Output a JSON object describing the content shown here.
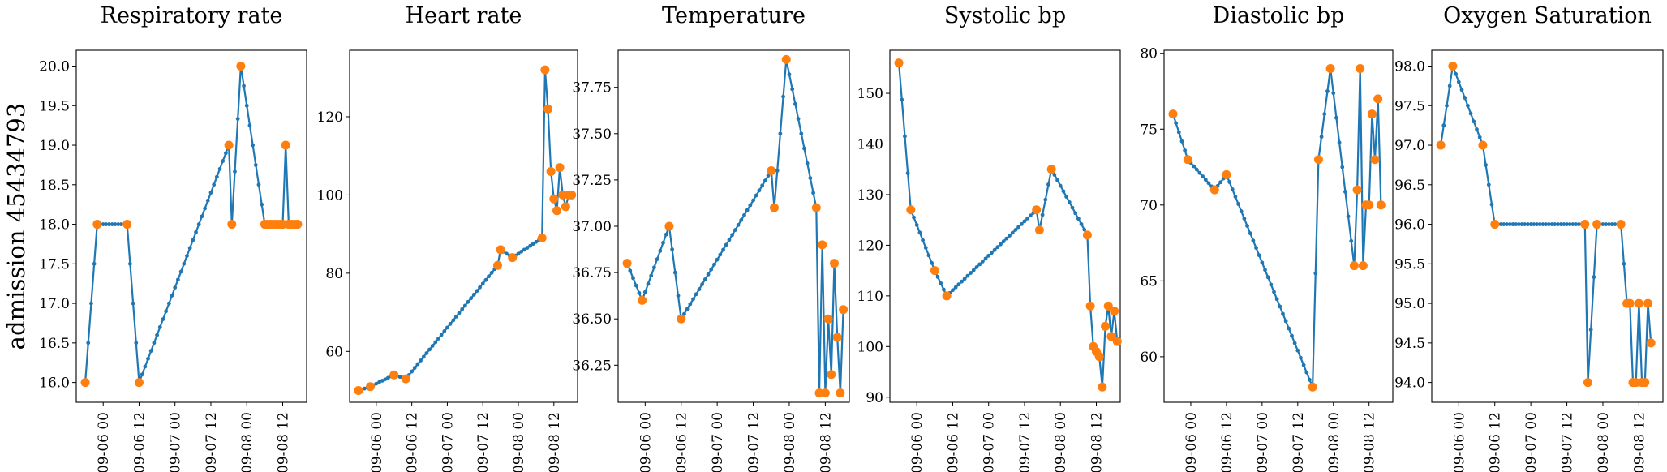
{
  "row_label": "admission 45434793",
  "colors": {
    "line": "#1f77b4",
    "marker": "#ff7f0e"
  },
  "chart_data": [
    {
      "type": "line",
      "title": "Respiratory rate",
      "xlim": [
        "09-05 15:00",
        "09-08 20:00"
      ],
      "xticks": [
        "09-06 00",
        "09-06 12",
        "09-07 00",
        "09-07 12",
        "09-08 00",
        "09-08 12"
      ],
      "ylim": [
        15.75,
        20.2
      ],
      "yticks": [
        "16.0",
        "16.5",
        "17.0",
        "17.5",
        "18.0",
        "18.5",
        "19.0",
        "19.5",
        "20.0"
      ],
      "series": [
        {
          "points": [
            [
              "09-05 18:00",
              16
            ],
            [
              "09-05 22:00",
              18
            ],
            [
              "09-06 08:00",
              18
            ],
            [
              "09-06 12:00",
              16
            ],
            [
              "09-07 18:00",
              19
            ],
            [
              "09-07 19:00",
              18
            ],
            [
              "09-07 22:00",
              20
            ],
            [
              "09-08 06:00",
              18
            ],
            [
              "09-08 07:00",
              18
            ],
            [
              "09-08 08:00",
              18
            ],
            [
              "09-08 09:00",
              18
            ],
            [
              "09-08 10:00",
              18
            ],
            [
              "09-08 11:00",
              18
            ],
            [
              "09-08 12:00",
              18
            ],
            [
              "09-08 13:00",
              19
            ],
            [
              "09-08 14:00",
              18
            ],
            [
              "09-08 15:00",
              18
            ],
            [
              "09-08 16:00",
              18
            ],
            [
              "09-08 17:00",
              18
            ]
          ]
        }
      ]
    },
    {
      "type": "line",
      "title": "Heart rate",
      "xlim": [
        "09-05 15:00",
        "09-08 20:00"
      ],
      "xticks": [
        "09-06 00",
        "09-06 12",
        "09-07 00",
        "09-07 12",
        "09-08 00",
        "09-08 12"
      ],
      "ylim": [
        47,
        137
      ],
      "yticks": [
        "60",
        "80",
        "100",
        "120"
      ],
      "series": [
        {
          "points": [
            [
              "09-05 18:00",
              50
            ],
            [
              "09-05 22:00",
              51
            ],
            [
              "09-06 06:00",
              54
            ],
            [
              "09-06 10:00",
              53
            ],
            [
              "09-07 17:00",
              82
            ],
            [
              "09-07 18:00",
              86
            ],
            [
              "09-07 22:00",
              84
            ],
            [
              "09-08 08:00",
              89
            ],
            [
              "09-08 09:00",
              132
            ],
            [
              "09-08 10:00",
              122
            ],
            [
              "09-08 11:00",
              106
            ],
            [
              "09-08 12:00",
              99
            ],
            [
              "09-08 13:00",
              96
            ],
            [
              "09-08 14:00",
              107
            ],
            [
              "09-08 15:00",
              100
            ],
            [
              "09-08 16:00",
              97
            ],
            [
              "09-08 17:00",
              100
            ],
            [
              "09-08 18:00",
              100
            ]
          ]
        }
      ]
    },
    {
      "type": "line",
      "title": "Temperature",
      "xlim": [
        "09-05 15:00",
        "09-08 20:00"
      ],
      "xticks": [
        "09-06 00",
        "09-06 12",
        "09-07 00",
        "09-07 12",
        "09-08 00",
        "09-08 12"
      ],
      "ylim": [
        36.05,
        37.95
      ],
      "yticks": [
        "36.25",
        "36.50",
        "36.75",
        "37.00",
        "37.25",
        "37.50",
        "37.75"
      ],
      "series": [
        {
          "points": [
            [
              "09-05 18:00",
              36.8
            ],
            [
              "09-05 23:00",
              36.6
            ],
            [
              "09-06 08:00",
              37.0
            ],
            [
              "09-06 12:00",
              36.5
            ],
            [
              "09-07 18:00",
              37.3
            ],
            [
              "09-07 19:00",
              37.1
            ],
            [
              "09-07 23:00",
              37.9
            ],
            [
              "09-08 09:00",
              37.1
            ],
            [
              "09-08 10:00",
              36.1
            ],
            [
              "09-08 11:00",
              36.9
            ],
            [
              "09-08 12:00",
              36.1
            ],
            [
              "09-08 13:00",
              36.5
            ],
            [
              "09-08 14:00",
              36.2
            ],
            [
              "09-08 15:00",
              36.8
            ],
            [
              "09-08 16:00",
              36.4
            ],
            [
              "09-08 17:00",
              36.1
            ],
            [
              "09-08 18:00",
              36.55
            ]
          ]
        }
      ]
    },
    {
      "type": "line",
      "title": "Systolic bp",
      "xlim": [
        "09-05 15:00",
        "09-08 20:00"
      ],
      "xticks": [
        "09-06 00",
        "09-06 12",
        "09-07 00",
        "09-07 12",
        "09-08 00",
        "09-08 12"
      ],
      "ylim": [
        89,
        158.5
      ],
      "yticks": [
        "90",
        "100",
        "110",
        "120",
        "130",
        "140",
        "150"
      ],
      "series": [
        {
          "points": [
            [
              "09-05 18:00",
              156
            ],
            [
              "09-05 22:00",
              127
            ],
            [
              "09-06 06:00",
              115
            ],
            [
              "09-06 10:00",
              110
            ],
            [
              "09-07 16:00",
              127
            ],
            [
              "09-07 17:00",
              123
            ],
            [
              "09-07 21:00",
              135
            ],
            [
              "09-08 09:00",
              122
            ],
            [
              "09-08 10:00",
              108
            ],
            [
              "09-08 11:00",
              100
            ],
            [
              "09-08 12:00",
              99
            ],
            [
              "09-08 13:00",
              98
            ],
            [
              "09-08 14:00",
              92
            ],
            [
              "09-08 15:00",
              104
            ],
            [
              "09-08 16:00",
              108
            ],
            [
              "09-08 17:00",
              102
            ],
            [
              "09-08 18:00",
              107
            ],
            [
              "09-08 19:00",
              101
            ]
          ]
        }
      ]
    },
    {
      "type": "line",
      "title": "Diastolic bp",
      "xlim": [
        "09-05 15:00",
        "09-08 20:00"
      ],
      "xticks": [
        "09-06 00",
        "09-06 12",
        "09-07 00",
        "09-07 12",
        "09-08 00",
        "09-08 12"
      ],
      "ylim": [
        57,
        80.2
      ],
      "yticks": [
        "60",
        "65",
        "70",
        "75",
        "80"
      ],
      "series": [
        {
          "points": [
            [
              "09-05 18:00",
              76
            ],
            [
              "09-05 23:00",
              73
            ],
            [
              "09-06 08:00",
              71
            ],
            [
              "09-06 12:00",
              72
            ],
            [
              "09-07 17:00",
              58
            ],
            [
              "09-07 19:00",
              73
            ],
            [
              "09-07 23:00",
              79
            ],
            [
              "09-08 07:00",
              66
            ],
            [
              "09-08 08:00",
              71
            ],
            [
              "09-08 09:00",
              79
            ],
            [
              "09-08 10:00",
              66
            ],
            [
              "09-08 11:00",
              70
            ],
            [
              "09-08 12:00",
              70
            ],
            [
              "09-08 13:00",
              76
            ],
            [
              "09-08 14:00",
              73
            ],
            [
              "09-08 15:00",
              77
            ],
            [
              "09-08 16:00",
              70
            ]
          ]
        }
      ]
    },
    {
      "type": "line",
      "title": "Oxygen Saturation",
      "xlim": [
        "09-05 15:00",
        "09-08 20:00"
      ],
      "xticks": [
        "09-06 00",
        "09-06 12",
        "09-07 00",
        "09-07 12",
        "09-08 00",
        "09-08 12"
      ],
      "ylim": [
        93.75,
        98.2
      ],
      "yticks": [
        "94.0",
        "94.5",
        "95.0",
        "95.5",
        "96.0",
        "96.5",
        "97.0",
        "97.5",
        "98.0"
      ],
      "series": [
        {
          "points": [
            [
              "09-05 18:00",
              97
            ],
            [
              "09-05 22:00",
              98
            ],
            [
              "09-06 08:00",
              97
            ],
            [
              "09-06 12:00",
              96
            ],
            [
              "09-07 18:00",
              96
            ],
            [
              "09-07 19:00",
              94
            ],
            [
              "09-07 22:00",
              96
            ],
            [
              "09-08 06:00",
              96
            ],
            [
              "09-08 08:00",
              95
            ],
            [
              "09-08 09:00",
              95
            ],
            [
              "09-08 10:00",
              94
            ],
            [
              "09-08 11:00",
              94
            ],
            [
              "09-08 12:00",
              95
            ],
            [
              "09-08 13:00",
              94
            ],
            [
              "09-08 14:00",
              94
            ],
            [
              "09-08 15:00",
              95
            ],
            [
              "09-08 16:00",
              94.5
            ]
          ]
        }
      ]
    }
  ]
}
